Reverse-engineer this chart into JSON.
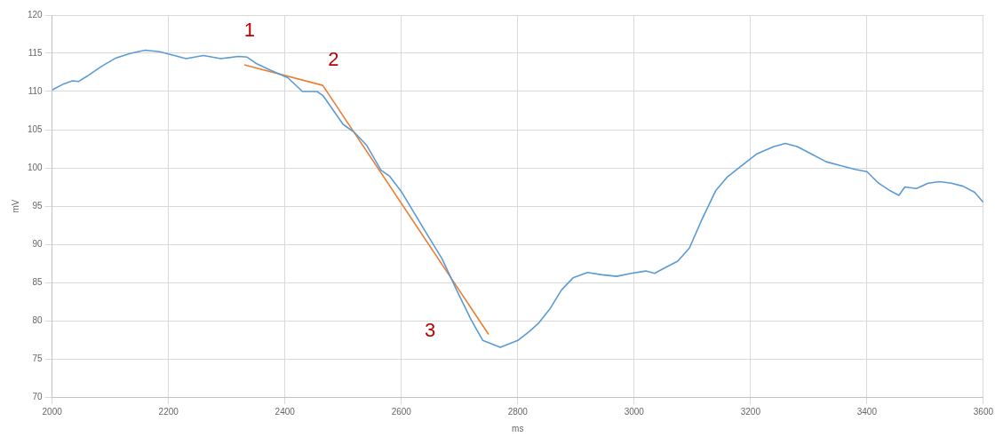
{
  "chart_data": {
    "type": "line",
    "xlabel": "ms",
    "ylabel": "mV",
    "xlim": [
      2000,
      3600
    ],
    "xticks": [
      2000,
      2200,
      2400,
      2600,
      2800,
      3000,
      3200,
      3400,
      3600
    ],
    "ylim": [
      70,
      120
    ],
    "yticks": [
      70,
      75,
      80,
      85,
      90,
      95,
      100,
      105,
      110,
      115,
      120
    ],
    "grid": true,
    "legend": false,
    "marker": "none",
    "line_style": "solid",
    "series": [
      {
        "color": "#5b9bd5",
        "x": [
          2000,
          2020,
          2035,
          2045,
          2060,
          2085,
          2110,
          2135,
          2160,
          2185,
          2210,
          2230,
          2260,
          2290,
          2320,
          2335,
          2350,
          2375,
          2405,
          2430,
          2455,
          2465,
          2500,
          2520,
          2540,
          2565,
          2580,
          2600,
          2645,
          2670,
          2695,
          2720,
          2740,
          2770,
          2800,
          2820,
          2835,
          2855,
          2875,
          2895,
          2920,
          2945,
          2970,
          2995,
          3020,
          3035,
          3055,
          3075,
          3095,
          3115,
          3140,
          3160,
          3185,
          3210,
          3240,
          3260,
          3280,
          3305,
          3330,
          3355,
          3380,
          3400,
          3420,
          3440,
          3455,
          3465,
          3485,
          3505,
          3525,
          3545,
          3565,
          3585,
          3600
        ],
        "values": [
          110.2,
          111.0,
          111.4,
          111.3,
          112.0,
          113.3,
          114.4,
          115.0,
          115.4,
          115.2,
          114.7,
          114.3,
          114.7,
          114.3,
          114.6,
          114.5,
          113.7,
          112.8,
          111.8,
          110.0,
          110.0,
          109.5,
          105.7,
          104.6,
          103.0,
          99.7,
          98.9,
          96.9,
          91.2,
          88.1,
          84.0,
          80.1,
          77.4,
          76.5,
          77.4,
          78.6,
          79.6,
          81.5,
          84.0,
          85.6,
          86.3,
          86.0,
          85.8,
          86.2,
          86.5,
          86.2,
          87.0,
          87.8,
          89.5,
          93.0,
          97.0,
          98.8,
          100.3,
          101.8,
          102.8,
          103.2,
          102.8,
          101.8,
          100.8,
          100.3,
          99.8,
          99.5,
          98.0,
          97.0,
          96.4,
          97.5,
          97.3,
          98.0,
          98.2,
          98.0,
          97.6,
          96.8,
          95.5
        ]
      },
      {
        "color": "#ed7d31",
        "x": [
          2330,
          2465,
          2750
        ],
        "values": [
          113.5,
          110.8,
          78.2
        ]
      }
    ],
    "annotations": [
      {
        "text": "1",
        "x": 2330,
        "y": 113.5
      },
      {
        "text": "2",
        "x": 2465,
        "y": 110.8
      },
      {
        "text": "3",
        "x": 2750,
        "y": 78.2
      }
    ]
  }
}
